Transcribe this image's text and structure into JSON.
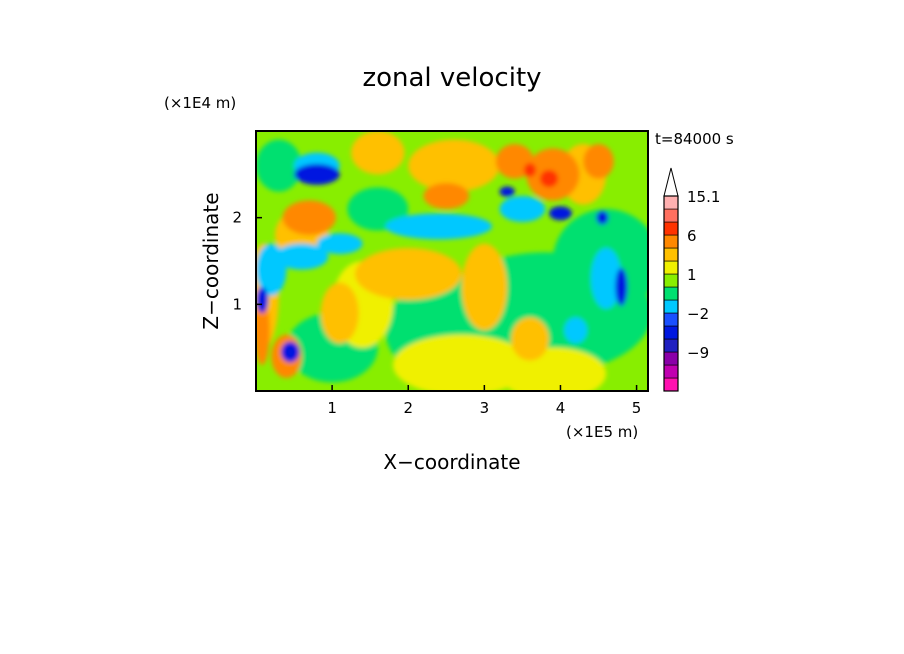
{
  "chart_data": {
    "type": "heatmap",
    "title": "zonal velocity",
    "xlabel": "X−coordinate",
    "ylabel": "Z−coordinate",
    "x_scale_note": "(×1E5 m)",
    "y_scale_note": "(×1E4 m)",
    "time_label": "t=84000 s",
    "xlim": [
      0,
      5.15
    ],
    "ylim": [
      0,
      3
    ],
    "x_ticks": [
      1,
      2,
      3,
      4,
      5
    ],
    "y_ticks": [
      1,
      2
    ],
    "colorbar": {
      "levels": [
        "<-12",
        "-12 to -10.5",
        "-10.5 to -9",
        "-9 to -6",
        "-6 to -4",
        "-4 to -2",
        "-2 to -1",
        "-1 to 0",
        "0 to 1",
        "1 to 2",
        "2 to 3",
        "3 to 6",
        "6 to 9",
        "9 to 12",
        "12 to 15.1",
        ">15.1"
      ],
      "colors": [
        "#ff10b0",
        "#c000b0",
        "#8a00a8",
        "#2020c0",
        "#0018e0",
        "#1a50ff",
        "#00c8ff",
        "#00e070",
        "#88ee00",
        "#f0f000",
        "#ffc000",
        "#ff8800",
        "#ff3300",
        "#ff7060",
        "#ffb0b0",
        "#ffffff"
      ],
      "labels": [
        "15.1",
        "6",
        "1",
        "−2",
        "−9"
      ]
    },
    "grid": false
  }
}
